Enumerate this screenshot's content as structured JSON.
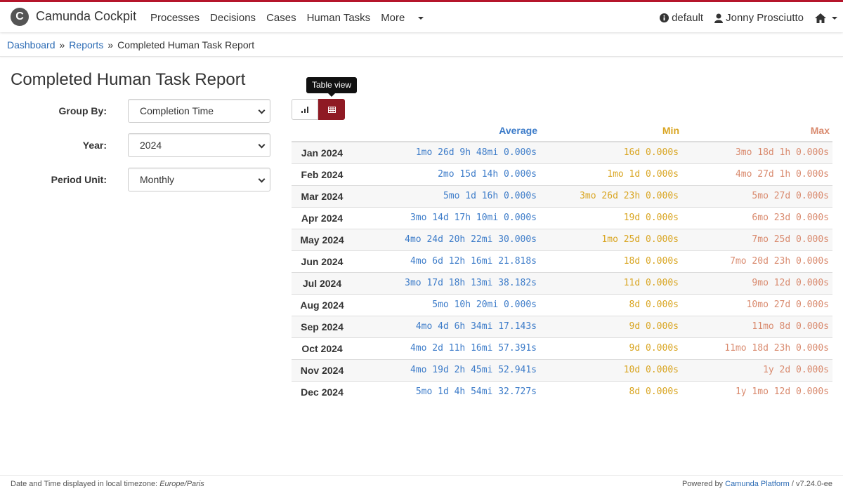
{
  "app": {
    "title": "Camunda Cockpit",
    "logo_letter": "C"
  },
  "nav": {
    "items": [
      "Processes",
      "Decisions",
      "Cases",
      "Human Tasks"
    ],
    "more_label": "More"
  },
  "user": {
    "engine_label": "default",
    "name": "Jonny Prosciutto"
  },
  "breadcrumb": {
    "dashboard": "Dashboard",
    "reports": "Reports",
    "current": "Completed Human Task Report",
    "separator": "»"
  },
  "page": {
    "title": "Completed Human Task Report"
  },
  "form": {
    "group_by": {
      "label": "Group By:",
      "value": "Completion Time"
    },
    "year": {
      "label": "Year:",
      "value": "2024"
    },
    "period_unit": {
      "label": "Period Unit:",
      "value": "Monthly"
    }
  },
  "view_toggle": {
    "tooltip": "Table view",
    "chart_icon": "bar-chart-icon",
    "table_icon": "table-icon",
    "active": "table"
  },
  "table": {
    "headers": {
      "average": "Average",
      "min": "Min",
      "max": "Max"
    },
    "rows": [
      {
        "period": "Jan 2024",
        "average": "1mo 26d 9h 48mi 0.000s",
        "min": "16d 0.000s",
        "max": "3mo 18d 1h 0.000s"
      },
      {
        "period": "Feb 2024",
        "average": "2mo 15d 14h 0.000s",
        "min": "1mo 1d 0.000s",
        "max": "4mo 27d 1h 0.000s"
      },
      {
        "period": "Mar 2024",
        "average": "5mo 1d 16h 0.000s",
        "min": "3mo 26d 23h 0.000s",
        "max": "5mo 27d 0.000s"
      },
      {
        "period": "Apr 2024",
        "average": "3mo 14d 17h 10mi 0.000s",
        "min": "19d 0.000s",
        "max": "6mo 23d 0.000s"
      },
      {
        "period": "May 2024",
        "average": "4mo 24d 20h 22mi 30.000s",
        "min": "1mo 25d 0.000s",
        "max": "7mo 25d 0.000s"
      },
      {
        "period": "Jun 2024",
        "average": "4mo 6d 12h 16mi 21.818s",
        "min": "18d 0.000s",
        "max": "7mo 20d 23h 0.000s"
      },
      {
        "period": "Jul 2024",
        "average": "3mo 17d 18h 13mi 38.182s",
        "min": "11d 0.000s",
        "max": "9mo 12d 0.000s"
      },
      {
        "period": "Aug 2024",
        "average": "5mo 10h 20mi 0.000s",
        "min": "8d 0.000s",
        "max": "10mo 27d 0.000s"
      },
      {
        "period": "Sep 2024",
        "average": "4mo 4d 6h 34mi 17.143s",
        "min": "9d 0.000s",
        "max": "11mo 8d 0.000s"
      },
      {
        "period": "Oct 2024",
        "average": "4mo 2d 11h 16mi 57.391s",
        "min": "9d 0.000s",
        "max": "11mo 18d 23h 0.000s"
      },
      {
        "period": "Nov 2024",
        "average": "4mo 19d 2h 45mi 52.941s",
        "min": "10d 0.000s",
        "max": "1y 2d 0.000s"
      },
      {
        "period": "Dec 2024",
        "average": "5mo 1d 4h 54mi 32.727s",
        "min": "8d 0.000s",
        "max": "1y 1mo 12d 0.000s"
      }
    ]
  },
  "footer": {
    "timezone_prefix": "Date and Time displayed in local timezone:",
    "timezone": "Europe/Paris",
    "powered_prefix": "Powered by",
    "platform": "Camunda Platform",
    "version": "/ v7.24.0-ee"
  },
  "colors": {
    "accent": "#b5152b",
    "active_button": "#8f1a24",
    "average": "#3d7cc9",
    "min": "#d9a521",
    "max": "#d98a6e",
    "link": "#2a6ab4"
  }
}
